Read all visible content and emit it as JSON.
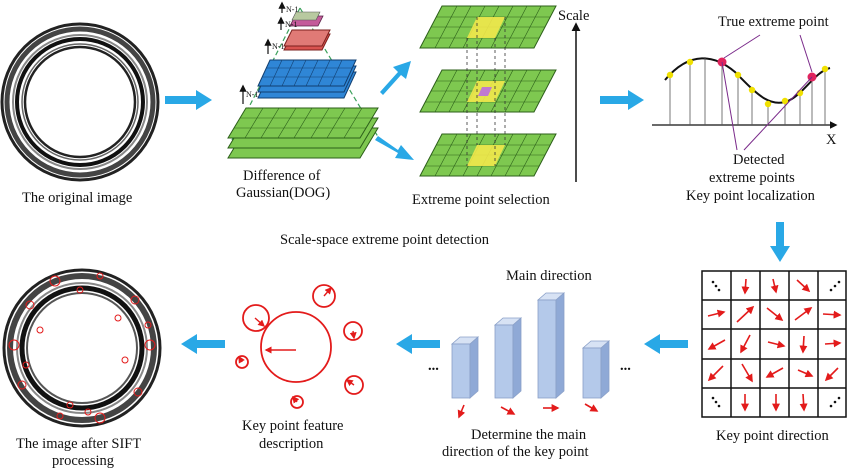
{
  "labels": {
    "original_image": "The original image",
    "dog_line1": "Difference of",
    "dog_line2": "Gaussian(DOG)",
    "extreme_selection": "Extreme point selection",
    "scale": "Scale",
    "true_extreme": "True extreme point",
    "x_axis": "X",
    "detected_line1": "Detected",
    "detected_line2": "extreme points",
    "key_localization": "Key point localization",
    "scale_space_detection": "Scale-space extreme point detection",
    "main_direction": "Main direction",
    "determine_line1": "Determine the main",
    "determine_line2": "direction of the key point",
    "key_direction": "Key point direction",
    "feature_line1": "Key point feature",
    "feature_line2": "description",
    "after_line1": "The image after SIFT",
    "after_line2": "processing"
  },
  "pyramid_levels": [
    "N-1",
    "N-1",
    "N-1",
    "N-1"
  ],
  "ellipsis": "...",
  "colors": {
    "arrow_blue": "#29a8e6",
    "grid_green": "#7ec850",
    "grid_blue": "#2f86d6",
    "grid_red": "#d9534f",
    "highlight_yellow": "#f2e84b",
    "keypoint_red": "#e0245e",
    "vector_red": "#e31b1b",
    "bar_fill": "#b4c9ea"
  }
}
